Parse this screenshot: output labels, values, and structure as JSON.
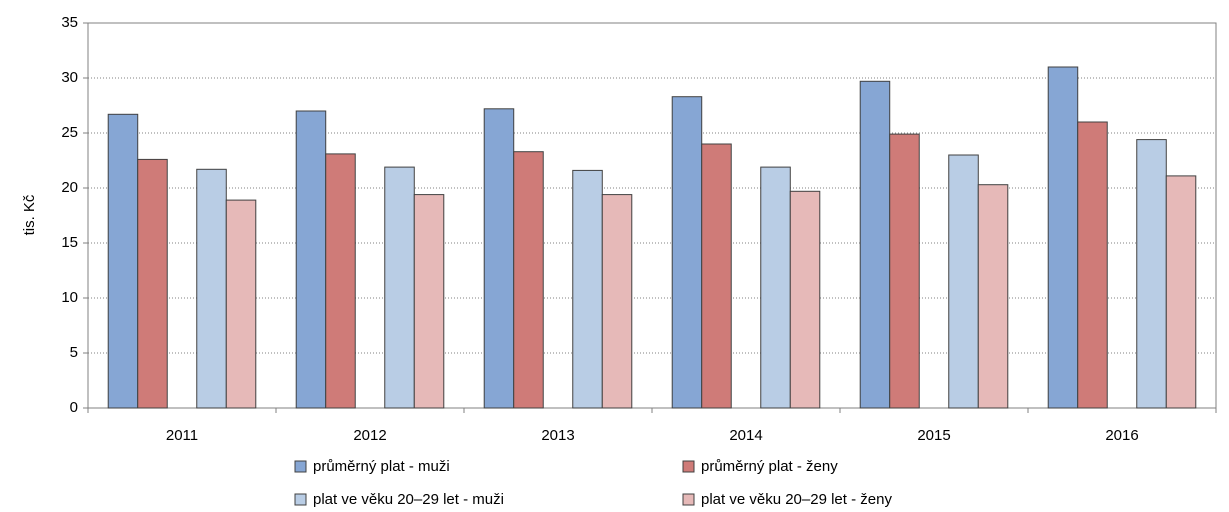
{
  "chart_data": {
    "type": "bar",
    "y_label": "tis. Kč",
    "categories": [
      "2011",
      "2012",
      "2013",
      "2014",
      "2015",
      "2016"
    ],
    "series": [
      {
        "name": "průměrný plat - muži",
        "color": "#86a6d4",
        "values": [
          26.7,
          27.0,
          27.2,
          28.3,
          29.7,
          31.0
        ]
      },
      {
        "name": "průměrný plat - ženy",
        "color": "#cf7b78",
        "values": [
          22.6,
          23.1,
          23.3,
          24.0,
          24.9,
          26.0
        ]
      },
      {
        "name": "plat ve věku 20–29 let - muži",
        "color": "#b9cde5",
        "values": [
          21.7,
          21.9,
          21.6,
          21.9,
          23.0,
          24.4
        ]
      },
      {
        "name": "plat ve věku 20–29 let - ženy",
        "color": "#e6b9b8",
        "values": [
          18.9,
          19.4,
          19.4,
          19.7,
          20.3,
          21.1
        ]
      }
    ],
    "ylim": [
      0,
      35
    ],
    "yticks": [
      0,
      5,
      10,
      15,
      20,
      25,
      30,
      35
    ],
    "grid": true,
    "legend": "bottom"
  }
}
